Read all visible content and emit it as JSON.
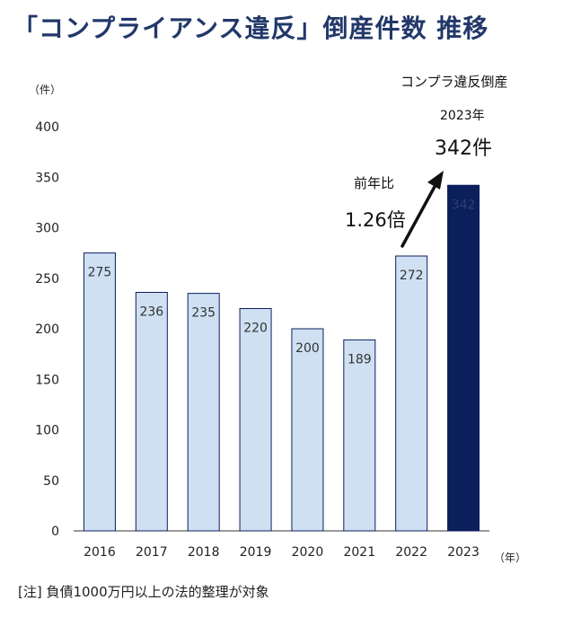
{
  "title": "「コンプライアンス違反」倒産件数 推移",
  "note": "[注] 負債1000万円以上の法的整理が対象",
  "annotation": {
    "highlight_line1": "コンプラ違反倒産",
    "highlight_line2": "2023年",
    "highlight_line3": "342件",
    "ratio_label": "前年比",
    "ratio_value": "1.26倍"
  },
  "colors": {
    "bar": "#cfe0f3",
    "bar_highlight": "#0b1f5c",
    "bar_stroke": "#0b1f5c",
    "title": "#22386a"
  },
  "chart_data": {
    "type": "bar",
    "categories": [
      "2016",
      "2017",
      "2018",
      "2019",
      "2020",
      "2021",
      "2022",
      "2023"
    ],
    "values": [
      275,
      236,
      235,
      220,
      200,
      189,
      272,
      342
    ],
    "ylabel": "（件）",
    "xlabel": "（年）",
    "ylim": [
      0,
      400
    ],
    "yticks": [
      0,
      50,
      100,
      150,
      200,
      250,
      300,
      350,
      400
    ],
    "highlight_index": 7,
    "grid": false
  }
}
